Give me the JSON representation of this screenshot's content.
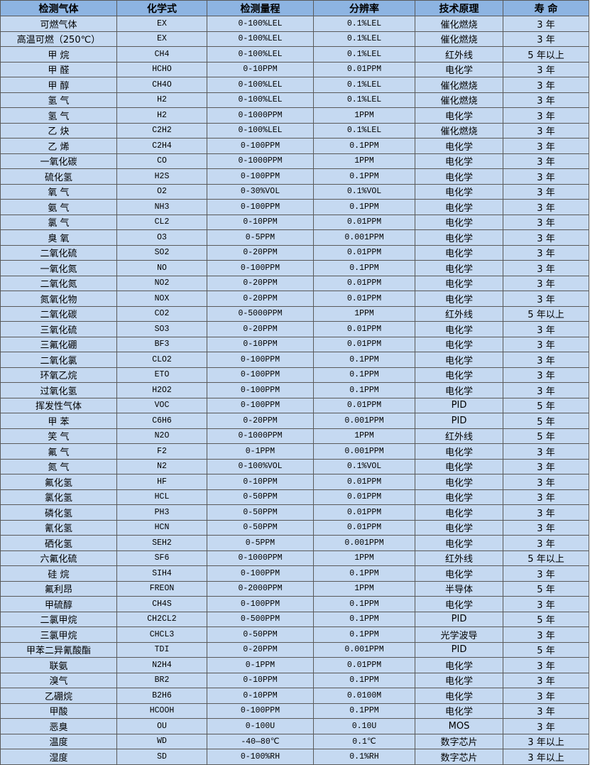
{
  "colors": {
    "header_bg": "#8db4e2",
    "row_bg": "#c5d9f1",
    "border": "#5a5a5a"
  },
  "headers": [
    "检测气体",
    "化学式",
    "检测量程",
    "分辨率",
    "技术原理",
    "寿 命"
  ],
  "rows": [
    [
      "可燃气体",
      "EX",
      "0-100%LEL",
      "0.1%LEL",
      "催化燃烧",
      "3 年"
    ],
    [
      "高温可燃（250℃）",
      "EX",
      "0-100%LEL",
      "0.1%LEL",
      "催化燃烧",
      "3 年"
    ],
    [
      "甲 烷",
      "CH4",
      "0-100%LEL",
      "0.1%LEL",
      "红外线",
      "5 年以上"
    ],
    [
      "甲 醛",
      "HCHO",
      "0-10PPM",
      "0.01PPM",
      "电化学",
      "3 年"
    ],
    [
      "甲 醇",
      "CH4O",
      "0-100%LEL",
      "0.1%LEL",
      "催化燃烧",
      "3 年"
    ],
    [
      "氢 气",
      "H2",
      "0-100%LEL",
      "0.1%LEL",
      "催化燃烧",
      "3 年"
    ],
    [
      "氢 气",
      "H2",
      "0-1000PPM",
      "1PPM",
      "电化学",
      "3 年"
    ],
    [
      "乙 炔",
      "C2H2",
      "0-100%LEL",
      "0.1%LEL",
      "催化燃烧",
      "3 年"
    ],
    [
      "乙 烯",
      "C2H4",
      "0-100PPM",
      "0.1PPM",
      "电化学",
      "3 年"
    ],
    [
      "一氧化碳",
      "CO",
      "0-1000PPM",
      "1PPM",
      "电化学",
      "3 年"
    ],
    [
      "硫化氢",
      "H2S",
      "0-100PPM",
      "0.1PPM",
      "电化学",
      "3 年"
    ],
    [
      "氧 气",
      "O2",
      "0-30%VOL",
      "0.1%VOL",
      "电化学",
      "3 年"
    ],
    [
      "氨 气",
      "NH3",
      "0-100PPM",
      "0.1PPM",
      "电化学",
      "3 年"
    ],
    [
      "氯 气",
      "CL2",
      "0-10PPM",
      "0.01PPM",
      "电化学",
      "3 年"
    ],
    [
      "臭 氧",
      "O3",
      "0-5PPM",
      "0.001PPM",
      "电化学",
      "3 年"
    ],
    [
      "二氧化硫",
      "SO2",
      "0-20PPM",
      "0.01PPM",
      "电化学",
      "3 年"
    ],
    [
      "一氧化氮",
      "NO",
      "0-100PPM",
      "0.1PPM",
      "电化学",
      "3 年"
    ],
    [
      "二氧化氮",
      "NO2",
      "0-20PPM",
      "0.01PPM",
      "电化学",
      "3 年"
    ],
    [
      "氮氧化物",
      "NOX",
      "0-20PPM",
      "0.01PPM",
      "电化学",
      "3 年"
    ],
    [
      "二氧化碳",
      "CO2",
      "0-5000PPM",
      "1PPM",
      "红外线",
      "5 年以上"
    ],
    [
      "三氧化硫",
      "SO3",
      "0-20PPM",
      "0.01PPM",
      "电化学",
      "3 年"
    ],
    [
      "三氟化硼",
      "BF3",
      "0-10PPM",
      "0.01PPM",
      "电化学",
      "3 年"
    ],
    [
      "二氧化氯",
      "CLO2",
      "0-100PPM",
      "0.1PPM",
      "电化学",
      "3 年"
    ],
    [
      "环氧乙烷",
      "ETO",
      "0-100PPM",
      "0.1PPM",
      "电化学",
      "3 年"
    ],
    [
      "过氧化氢",
      "H2O2",
      "0-100PPM",
      "0.1PPM",
      "电化学",
      "3 年"
    ],
    [
      "挥发性气体",
      "VOC",
      "0-100PPM",
      "0.01PPM",
      "PID",
      "5 年"
    ],
    [
      "甲 苯",
      "C6H6",
      "0-20PPM",
      "0.001PPM",
      "PID",
      "5 年"
    ],
    [
      "笑 气",
      "N2O",
      "0-1000PPM",
      "1PPM",
      "红外线",
      "5 年"
    ],
    [
      "氟 气",
      "F2",
      "0-1PPM",
      "0.001PPM",
      "电化学",
      "3 年"
    ],
    [
      "氮 气",
      "N2",
      "0-100%VOL",
      "0.1%VOL",
      "电化学",
      "3 年"
    ],
    [
      "氟化氢",
      "HF",
      "0-10PPM",
      "0.01PPM",
      "电化学",
      "3 年"
    ],
    [
      "氯化氢",
      "HCL",
      "0-50PPM",
      "0.01PPM",
      "电化学",
      "3 年"
    ],
    [
      "磷化氢",
      "PH3",
      "0-50PPM",
      "0.01PPM",
      "电化学",
      "3 年"
    ],
    [
      "氰化氢",
      "HCN",
      "0-50PPM",
      "0.01PPM",
      "电化学",
      "3 年"
    ],
    [
      "硒化氢",
      "SEH2",
      "0-5PPM",
      "0.001PPM",
      "电化学",
      "3 年"
    ],
    [
      "六氟化硫",
      "SF6",
      "0-1000PPM",
      "1PPM",
      "红外线",
      "5 年以上"
    ],
    [
      "硅 烷",
      "SIH4",
      "0-100PPM",
      "0.1PPM",
      "电化学",
      "3 年"
    ],
    [
      "氟利昂",
      "FREON",
      "0-2000PPM",
      "1PPM",
      "半导体",
      "5 年"
    ],
    [
      "甲硫醇",
      "CH4S",
      "0-100PPM",
      "0.1PPM",
      "电化学",
      "3 年"
    ],
    [
      "二氯甲烷",
      "CH2CL2",
      "0-500PPM",
      "0.1PPM",
      "PID",
      "5 年"
    ],
    [
      "三氯甲烷",
      "CHCL3",
      "0-50PPM",
      "0.1PPM",
      "光学波导",
      "3 年"
    ],
    [
      "甲苯二异氰酸酯",
      "TDI",
      "0-20PPM",
      "0.001PPM",
      "PID",
      "5 年"
    ],
    [
      "联氨",
      "N2H4",
      "0-1PPM",
      "0.01PPM",
      "电化学",
      "3 年"
    ],
    [
      "溴气",
      "BR2",
      "0-10PPM",
      "0.1PPM",
      "电化学",
      "3 年"
    ],
    [
      "乙硼烷",
      "B2H6",
      "0-10PPM",
      "0.0100M",
      "电化学",
      "3 年"
    ],
    [
      "甲酸",
      "HCOOH",
      "0-100PPM",
      "0.1PPM",
      "电化学",
      "3 年"
    ],
    [
      "恶臭",
      "OU",
      "0-100U",
      "0.10U",
      "MOS",
      "3 年"
    ],
    [
      "温度",
      "WD",
      "-40—80℃",
      "0.1℃",
      "数字芯片",
      "3 年以上"
    ],
    [
      "湿度",
      "SD",
      "0-100%RH",
      "0.1%RH",
      "数字芯片",
      "3 年以上"
    ]
  ]
}
